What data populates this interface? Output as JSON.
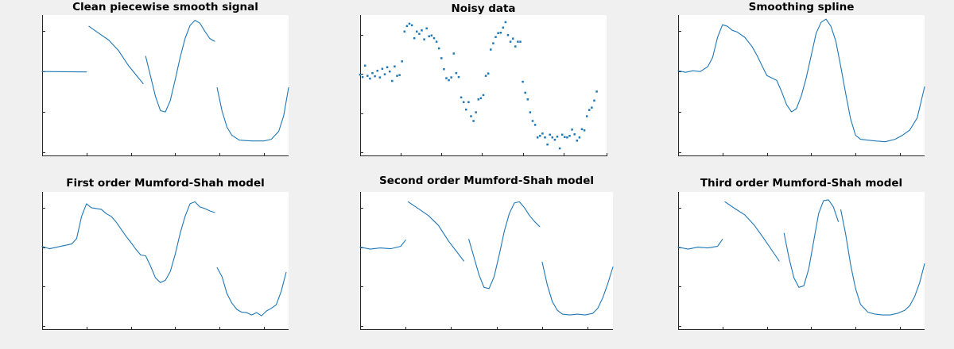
{
  "figure": {
    "background": "#f0f0f0",
    "axes_background": "#ffffff",
    "axis_color": "#262626"
  },
  "chart_data": [
    {
      "type": "line",
      "title": "Clean piecewise smooth signal",
      "color": "#1f77b4",
      "xlim": [
        0,
        1
      ],
      "ylim": [
        -0.5,
        3.0
      ],
      "yticks": [
        -0.4,
        0.6,
        1.6,
        2.6
      ],
      "xticks": [
        0,
        0.18,
        0.36,
        0.54,
        0.72,
        0.9
      ],
      "xticklabels_visible": false,
      "yticklabels_visible": false,
      "series": [
        {
          "x": [
            0.0,
            0.18
          ],
          "y": [
            1.6,
            1.59
          ]
        },
        {
          "x": [
            0.19,
            0.23,
            0.27,
            0.31,
            0.35,
            0.41
          ],
          "y": [
            2.72,
            2.55,
            2.38,
            2.12,
            1.75,
            1.3
          ]
        },
        {
          "x": [
            0.42,
            0.44,
            0.46,
            0.48,
            0.5,
            0.52,
            0.54,
            0.56,
            0.58,
            0.6,
            0.62,
            0.64,
            0.66,
            0.68,
            0.7
          ],
          "y": [
            1.98,
            1.48,
            0.98,
            0.63,
            0.6,
            0.88,
            1.4,
            1.95,
            2.42,
            2.74,
            2.87,
            2.8,
            2.6,
            2.42,
            2.35
          ]
        },
        {
          "x": [
            0.71,
            0.73,
            0.75,
            0.77,
            0.8,
            0.85,
            0.9,
            0.93,
            0.96,
            0.98,
            1.0
          ],
          "y": [
            1.2,
            0.62,
            0.22,
            0.02,
            -0.1,
            -0.12,
            -0.12,
            -0.08,
            0.12,
            0.5,
            1.2
          ]
        }
      ]
    },
    {
      "type": "scatter",
      "title": "Noisy data",
      "color": "#1f77b4",
      "xlim": [
        0,
        1
      ],
      "ylim": [
        -0.6,
        3.0
      ],
      "yticks": [
        -0.5,
        0.5,
        1.5,
        2.5
      ],
      "xticks": [
        0,
        0.165,
        0.33,
        0.495,
        0.66,
        0.825,
        1.0
      ],
      "xticklabels_visible": false,
      "yticklabels_visible": false,
      "x": [
        0.0,
        0.01,
        0.02,
        0.03,
        0.04,
        0.05,
        0.06,
        0.07,
        0.08,
        0.09,
        0.1,
        0.11,
        0.12,
        0.13,
        0.14,
        0.15,
        0.16,
        0.17,
        0.18,
        0.19,
        0.2,
        0.21,
        0.22,
        0.23,
        0.24,
        0.25,
        0.26,
        0.27,
        0.28,
        0.29,
        0.3,
        0.31,
        0.32,
        0.33,
        0.34,
        0.35,
        0.36,
        0.37,
        0.38,
        0.39,
        0.4,
        0.41,
        0.42,
        0.43,
        0.44,
        0.45,
        0.46,
        0.47,
        0.48,
        0.49,
        0.5,
        0.51,
        0.52,
        0.53,
        0.54,
        0.55,
        0.56,
        0.57,
        0.58,
        0.59,
        0.6,
        0.61,
        0.62,
        0.63,
        0.64,
        0.65,
        0.66,
        0.67,
        0.68,
        0.69,
        0.7,
        0.71,
        0.72,
        0.73,
        0.74,
        0.75,
        0.76,
        0.77,
        0.78,
        0.79,
        0.8,
        0.81,
        0.82,
        0.83,
        0.84,
        0.85,
        0.86,
        0.87,
        0.88,
        0.89,
        0.9,
        0.91,
        0.92,
        0.93,
        0.94,
        0.95,
        0.96
      ],
      "y": [
        1.48,
        1.42,
        1.71,
        1.45,
        1.38,
        1.52,
        1.44,
        1.58,
        1.41,
        1.63,
        1.49,
        1.67,
        1.56,
        1.32,
        1.69,
        1.45,
        1.47,
        1.82,
        2.58,
        2.72,
        2.78,
        2.74,
        2.41,
        2.58,
        2.52,
        2.61,
        2.38,
        2.66,
        2.46,
        2.48,
        2.41,
        2.32,
        2.15,
        1.9,
        1.62,
        1.39,
        1.34,
        1.41,
        2.02,
        1.52,
        1.42,
        0.9,
        0.78,
        0.59,
        0.78,
        0.42,
        0.3,
        0.52,
        0.85,
        0.88,
        0.96,
        1.45,
        1.51,
        2.12,
        2.28,
        2.44,
        2.54,
        2.55,
        2.68,
        2.82,
        2.49,
        2.32,
        2.4,
        2.2,
        2.32,
        2.32,
        1.3,
        1.02,
        0.85,
        0.52,
        0.3,
        0.2,
        -0.12,
        -0.08,
        -0.02,
        -0.12,
        -0.3,
        -0.05,
        -0.12,
        -0.18,
        -0.1,
        -0.4,
        -0.05,
        -0.11,
        -0.12,
        -0.08,
        0.08,
        -0.04,
        -0.2,
        -0.12,
        0.09,
        0.06,
        0.42,
        0.58,
        0.64,
        0.82,
        1.05
      ]
    },
    {
      "type": "line",
      "title": "Smoothing spline",
      "color": "#1f77b4",
      "xlim": [
        0,
        1
      ],
      "ylim": [
        -0.5,
        3.0
      ],
      "yticks": [
        -0.4,
        0.6,
        1.6,
        2.6
      ],
      "xticks": [
        0,
        0.18,
        0.36,
        0.54,
        0.72,
        0.9
      ],
      "xticklabels_visible": false,
      "yticklabels_visible": false,
      "series": [
        {
          "x": [
            0.0,
            0.03,
            0.06,
            0.09,
            0.12,
            0.14,
            0.16,
            0.18,
            0.2,
            0.22,
            0.24,
            0.27,
            0.3,
            0.32,
            0.34,
            0.36,
            0.38,
            0.4,
            0.42,
            0.44,
            0.46,
            0.48,
            0.5,
            0.52,
            0.54,
            0.56,
            0.58,
            0.6,
            0.62,
            0.64,
            0.66,
            0.68,
            0.7,
            0.72,
            0.74,
            0.77,
            0.8,
            0.84,
            0.88,
            0.91,
            0.94,
            0.97,
            1.0
          ],
          "y": [
            1.62,
            1.58,
            1.62,
            1.6,
            1.72,
            1.95,
            2.45,
            2.76,
            2.72,
            2.62,
            2.58,
            2.45,
            2.22,
            2.0,
            1.75,
            1.5,
            1.44,
            1.38,
            1.1,
            0.78,
            0.6,
            0.68,
            1.0,
            1.45,
            2.0,
            2.55,
            2.82,
            2.9,
            2.72,
            2.35,
            1.72,
            1.05,
            0.42,
            0.02,
            -0.08,
            -0.1,
            -0.12,
            -0.14,
            -0.08,
            0.02,
            0.15,
            0.45,
            1.22
          ]
        }
      ]
    },
    {
      "type": "line",
      "title": "First order Mumford-Shah model",
      "color": "#1f77b4",
      "xlim": [
        0,
        1
      ],
      "ylim": [
        -0.5,
        3.0
      ],
      "yticks": [
        -0.4,
        0.6,
        1.6,
        2.6
      ],
      "xticks": [
        0,
        0.18,
        0.36,
        0.54,
        0.72,
        0.9
      ],
      "xticklabels_visible": false,
      "yticklabels_visible": false,
      "series": [
        {
          "x": [
            0.0,
            0.03,
            0.06,
            0.09,
            0.12,
            0.14,
            0.16,
            0.18,
            0.2,
            0.22,
            0.24,
            0.26,
            0.28,
            0.3,
            0.32,
            0.34,
            0.36,
            0.38,
            0.4,
            0.42,
            0.44,
            0.46,
            0.48,
            0.5,
            0.52,
            0.54,
            0.56,
            0.58,
            0.6,
            0.62,
            0.64,
            0.66,
            0.68,
            0.7
          ],
          "y": [
            1.62,
            1.56,
            1.6,
            1.64,
            1.68,
            1.82,
            2.38,
            2.7,
            2.6,
            2.58,
            2.56,
            2.45,
            2.38,
            2.24,
            2.06,
            1.88,
            1.72,
            1.55,
            1.4,
            1.38,
            1.12,
            0.82,
            0.7,
            0.76,
            0.98,
            1.42,
            1.95,
            2.38,
            2.7,
            2.75,
            2.62,
            2.58,
            2.52,
            2.48
          ]
        },
        {
          "x": [
            0.71,
            0.73,
            0.75,
            0.77,
            0.79,
            0.81,
            0.83,
            0.85,
            0.87,
            0.89,
            0.91,
            0.93,
            0.95,
            0.97,
            0.99
          ],
          "y": [
            1.08,
            0.85,
            0.42,
            0.18,
            0.02,
            -0.05,
            -0.06,
            -0.12,
            -0.06,
            -0.14,
            -0.02,
            0.05,
            0.14,
            0.48,
            0.96
          ]
        }
      ]
    },
    {
      "type": "line",
      "title": "Second order Mumford-Shah model",
      "color": "#1f77b4",
      "xlim": [
        0,
        1
      ],
      "ylim": [
        -0.5,
        3.0
      ],
      "yticks": [
        -0.4,
        0.6,
        1.6,
        2.6
      ],
      "xticks": [
        0,
        0.18,
        0.36,
        0.54,
        0.72,
        0.9
      ],
      "xticklabels_visible": false,
      "yticklabels_visible": false,
      "series": [
        {
          "x": [
            0.0,
            0.04,
            0.08,
            0.12,
            0.16,
            0.18
          ],
          "y": [
            1.6,
            1.55,
            1.58,
            1.56,
            1.62,
            1.78
          ]
        },
        {
          "x": [
            0.19,
            0.23,
            0.27,
            0.31,
            0.35,
            0.41
          ],
          "y": [
            2.75,
            2.58,
            2.4,
            2.15,
            1.75,
            1.25
          ]
        },
        {
          "x": [
            0.43,
            0.45,
            0.47,
            0.49,
            0.51,
            0.53,
            0.55,
            0.57,
            0.59,
            0.61,
            0.63,
            0.65,
            0.67,
            0.69,
            0.71
          ],
          "y": [
            1.8,
            1.35,
            0.9,
            0.58,
            0.55,
            0.85,
            1.4,
            2.0,
            2.45,
            2.72,
            2.75,
            2.6,
            2.4,
            2.25,
            2.12
          ]
        },
        {
          "x": [
            0.72,
            0.74,
            0.76,
            0.78,
            0.8,
            0.83,
            0.86,
            0.89,
            0.92,
            0.94,
            0.96,
            0.98,
            1.0
          ],
          "y": [
            1.22,
            0.65,
            0.22,
            0.0,
            -0.1,
            -0.12,
            -0.1,
            -0.12,
            -0.08,
            0.05,
            0.32,
            0.68,
            1.1
          ]
        }
      ]
    },
    {
      "type": "line",
      "title": "Third order Mumford-Shah model",
      "color": "#1f77b4",
      "xlim": [
        0,
        1
      ],
      "ylim": [
        -0.5,
        3.0
      ],
      "yticks": [
        -0.4,
        0.6,
        1.6,
        2.6
      ],
      "xticks": [
        0,
        0.18,
        0.36,
        0.54,
        0.72,
        0.9
      ],
      "xticklabels_visible": false,
      "yticklabels_visible": false,
      "series": [
        {
          "x": [
            0.0,
            0.04,
            0.08,
            0.12,
            0.16,
            0.18
          ],
          "y": [
            1.6,
            1.55,
            1.6,
            1.58,
            1.62,
            1.8
          ]
        },
        {
          "x": [
            0.19,
            0.23,
            0.27,
            0.31,
            0.35,
            0.41
          ],
          "y": [
            2.75,
            2.58,
            2.42,
            2.15,
            1.8,
            1.25
          ]
        },
        {
          "x": [
            0.43,
            0.45,
            0.47,
            0.49,
            0.51,
            0.53,
            0.55,
            0.57,
            0.59,
            0.61,
            0.63,
            0.65
          ],
          "y": [
            1.95,
            1.32,
            0.82,
            0.58,
            0.62,
            1.05,
            1.75,
            2.45,
            2.78,
            2.8,
            2.62,
            2.25
          ]
        },
        {
          "x": [
            0.66,
            0.68,
            0.7,
            0.72,
            0.74,
            0.77,
            0.8,
            0.83,
            0.86,
            0.89,
            0.92,
            0.94,
            0.96,
            0.98,
            1.0
          ],
          "y": [
            2.55,
            1.92,
            1.15,
            0.55,
            0.15,
            -0.05,
            -0.1,
            -0.12,
            -0.12,
            -0.08,
            0.0,
            0.12,
            0.35,
            0.7,
            1.18
          ]
        }
      ]
    }
  ]
}
